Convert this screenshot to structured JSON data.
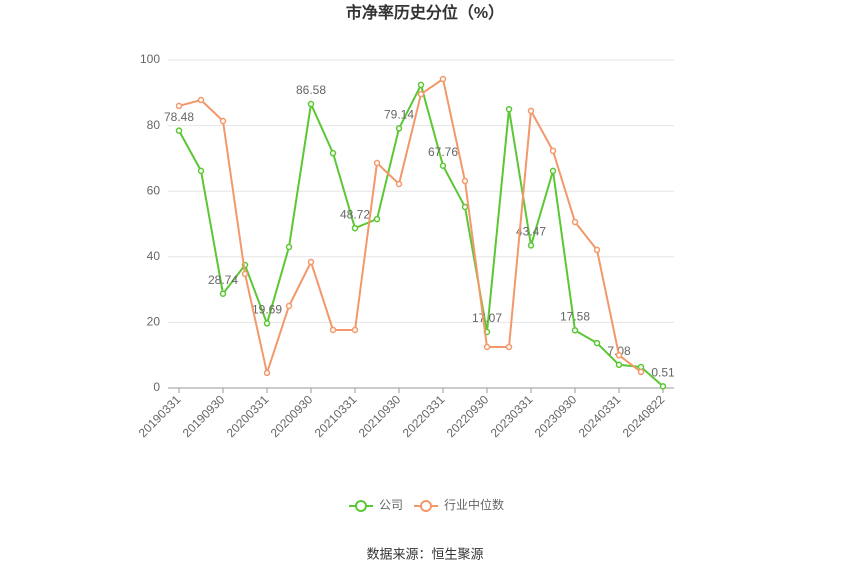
{
  "chart_data": {
    "type": "line",
    "title": "市净率历史分位（%）",
    "categories": [
      "20190331",
      null,
      "20190930",
      null,
      "20200331",
      null,
      "20200930",
      null,
      "20210331",
      null,
      "20210930",
      null,
      "20220331",
      null,
      "20220930",
      null,
      "20230331",
      null,
      "20230930",
      null,
      "20240331",
      null,
      "20240822"
    ],
    "series": [
      {
        "name": "公司",
        "color": "#5cc734",
        "values": [
          78.48,
          66.2,
          28.74,
          37.5,
          19.69,
          43.0,
          86.58,
          71.6,
          48.72,
          51.5,
          79.14,
          92.4,
          67.76,
          55.2,
          17.07,
          85.0,
          43.47,
          66.2,
          17.58,
          13.7,
          7.08,
          6.4,
          0.51
        ]
      },
      {
        "name": "行业中位数",
        "color": "#f2986a",
        "values": [
          86.0,
          87.8,
          81.4,
          34.8,
          4.6,
          25.0,
          38.4,
          17.7,
          17.7,
          68.6,
          62.2,
          89.6,
          94.2,
          63.1,
          12.5,
          12.5,
          84.5,
          72.3,
          50.6,
          42.1,
          10.0,
          4.9,
          null
        ]
      }
    ],
    "ylim": [
      0,
      100
    ],
    "yticks": [
      0,
      20,
      40,
      60,
      80,
      100
    ],
    "grid": true,
    "source": "数据来源：恒生聚源"
  }
}
